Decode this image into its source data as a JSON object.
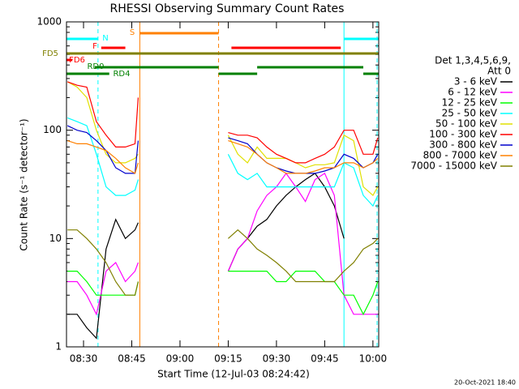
{
  "chart_data": {
    "type": "line",
    "title": "RHESSI Observing Summary Count Rates",
    "xlabel": "Start Time (12-Jul-03 08:24:42)",
    "ylabel": "Count Rate (s⁻¹ detector⁻¹)",
    "footer": "20-Oct-2021 18:40",
    "legend_header": [
      "Det 1,3,4,5,6,9,",
      "Att 0"
    ],
    "log_y": true,
    "xlim": [
      504.7,
      601.8
    ],
    "ylim": [
      1,
      1000
    ],
    "xticks": [
      {
        "value": 510,
        "label": "08:30"
      },
      {
        "value": 525,
        "label": "08:45"
      },
      {
        "value": 540,
        "label": "09:00"
      },
      {
        "value": 555,
        "label": "09:15"
      },
      {
        "value": 570,
        "label": "09:30"
      },
      {
        "value": 585,
        "label": "09:45"
      },
      {
        "value": 600,
        "label": "10:00"
      }
    ],
    "yticks": [
      1,
      10,
      100,
      1000
    ],
    "x": [
      505,
      508,
      511,
      514,
      517,
      520,
      523,
      526,
      527,
      540,
      555,
      558,
      561,
      564,
      567,
      570,
      573,
      576,
      579,
      582,
      585,
      588,
      591,
      594,
      597,
      600,
      601.5
    ],
    "series": [
      {
        "name": "3 - 6 keV",
        "color": "#000000",
        "values": [
          2,
          2,
          1.5,
          1.2,
          8,
          15,
          10,
          12,
          14,
          null,
          5,
          8,
          10,
          13,
          15,
          20,
          25,
          30,
          35,
          40,
          30,
          20,
          10,
          null,
          null,
          null,
          null
        ]
      },
      {
        "name": "6 - 12 keV",
        "color": "#ff00ff",
        "values": [
          4,
          4,
          3,
          2,
          5,
          6,
          4,
          5,
          6,
          null,
          5,
          8,
          10,
          18,
          25,
          30,
          40,
          30,
          22,
          35,
          40,
          25,
          3,
          2,
          2,
          2,
          2
        ]
      },
      {
        "name": "12 - 25 keV",
        "color": "#00ff00",
        "values": [
          5,
          5,
          4,
          3,
          3,
          3,
          3,
          3,
          4,
          null,
          5,
          5,
          5,
          5,
          5,
          4,
          4,
          5,
          5,
          5,
          4,
          4,
          3,
          3,
          2,
          3,
          4
        ]
      },
      {
        "name": "25 - 50 keV",
        "color": "#00ffff",
        "values": [
          130,
          120,
          110,
          60,
          30,
          25,
          25,
          28,
          35,
          null,
          60,
          40,
          35,
          40,
          30,
          30,
          30,
          30,
          30,
          30,
          30,
          30,
          50,
          45,
          25,
          20,
          25
        ]
      },
      {
        "name": "50 - 100 keV",
        "color": "#e0e000",
        "values": [
          280,
          250,
          200,
          100,
          60,
          50,
          50,
          55,
          60,
          null,
          90,
          60,
          50,
          70,
          55,
          55,
          55,
          50,
          45,
          48,
          48,
          50,
          90,
          80,
          30,
          25,
          30
        ]
      },
      {
        "name": "100 - 300 keV",
        "color": "#ff0000",
        "values": [
          280,
          260,
          250,
          120,
          90,
          70,
          70,
          75,
          200,
          null,
          95,
          90,
          90,
          85,
          70,
          60,
          55,
          50,
          50,
          55,
          60,
          70,
          100,
          100,
          60,
          60,
          85
        ]
      },
      {
        "name": "300 - 800 keV",
        "color": "#0000cc",
        "values": [
          110,
          100,
          95,
          80,
          65,
          45,
          40,
          40,
          80,
          null,
          85,
          80,
          75,
          60,
          50,
          45,
          42,
          40,
          40,
          40,
          42,
          45,
          60,
          55,
          45,
          50,
          60
        ]
      },
      {
        "name": "800 - 7000 keV",
        "color": "#ff8000",
        "values": [
          80,
          75,
          75,
          70,
          65,
          55,
          45,
          40,
          50,
          null,
          80,
          75,
          70,
          60,
          50,
          45,
          40,
          40,
          40,
          42,
          45,
          45,
          50,
          50,
          45,
          50,
          55
        ]
      },
      {
        "name": "7000 - 15000 keV",
        "color": "#808000",
        "values": [
          12,
          12,
          10,
          8,
          6,
          4,
          3,
          3,
          4,
          null,
          10,
          12,
          10,
          8,
          7,
          6,
          5,
          4,
          4,
          4,
          4,
          4,
          5,
          6,
          8,
          9,
          10
        ]
      }
    ],
    "flags": [
      {
        "label": "N",
        "color": "#00ffff",
        "segments": [
          [
            504.7,
            514.5
          ],
          [
            591,
            601.8
          ]
        ]
      },
      {
        "label": "F",
        "color": "#ff0000",
        "segments": [
          [
            515.5,
            523
          ],
          [
            556,
            590
          ]
        ]
      },
      {
        "label": "S",
        "color": "#ff8000",
        "segments": [
          [
            527.5,
            552
          ]
        ]
      },
      {
        "label": "FD5",
        "color": "#808000",
        "segments": [
          [
            504.7,
            601.8
          ]
        ]
      },
      {
        "label": "FD6",
        "color": "#ff0000",
        "segments": [
          [
            504.7,
            506.5
          ]
        ]
      },
      {
        "label": "RD0",
        "color": "#008000",
        "segments": [
          [
            513.5,
            552
          ],
          [
            564,
            597
          ]
        ]
      },
      {
        "label": "RD4",
        "color": "#008000",
        "segments": [
          [
            504.7,
            518
          ],
          [
            552,
            564
          ],
          [
            597,
            601.8
          ]
        ]
      }
    ],
    "markers": [
      {
        "x": 514.5,
        "color": "#00ffff",
        "dashed": true
      },
      {
        "x": 527.5,
        "color": "#ff8000",
        "dashed": false
      },
      {
        "x": 552,
        "color": "#ff8000",
        "dashed": true
      },
      {
        "x": 591,
        "color": "#00ffff",
        "dashed": false
      },
      {
        "x": 601.3,
        "color": "#00ffff",
        "dashed": true
      }
    ]
  }
}
